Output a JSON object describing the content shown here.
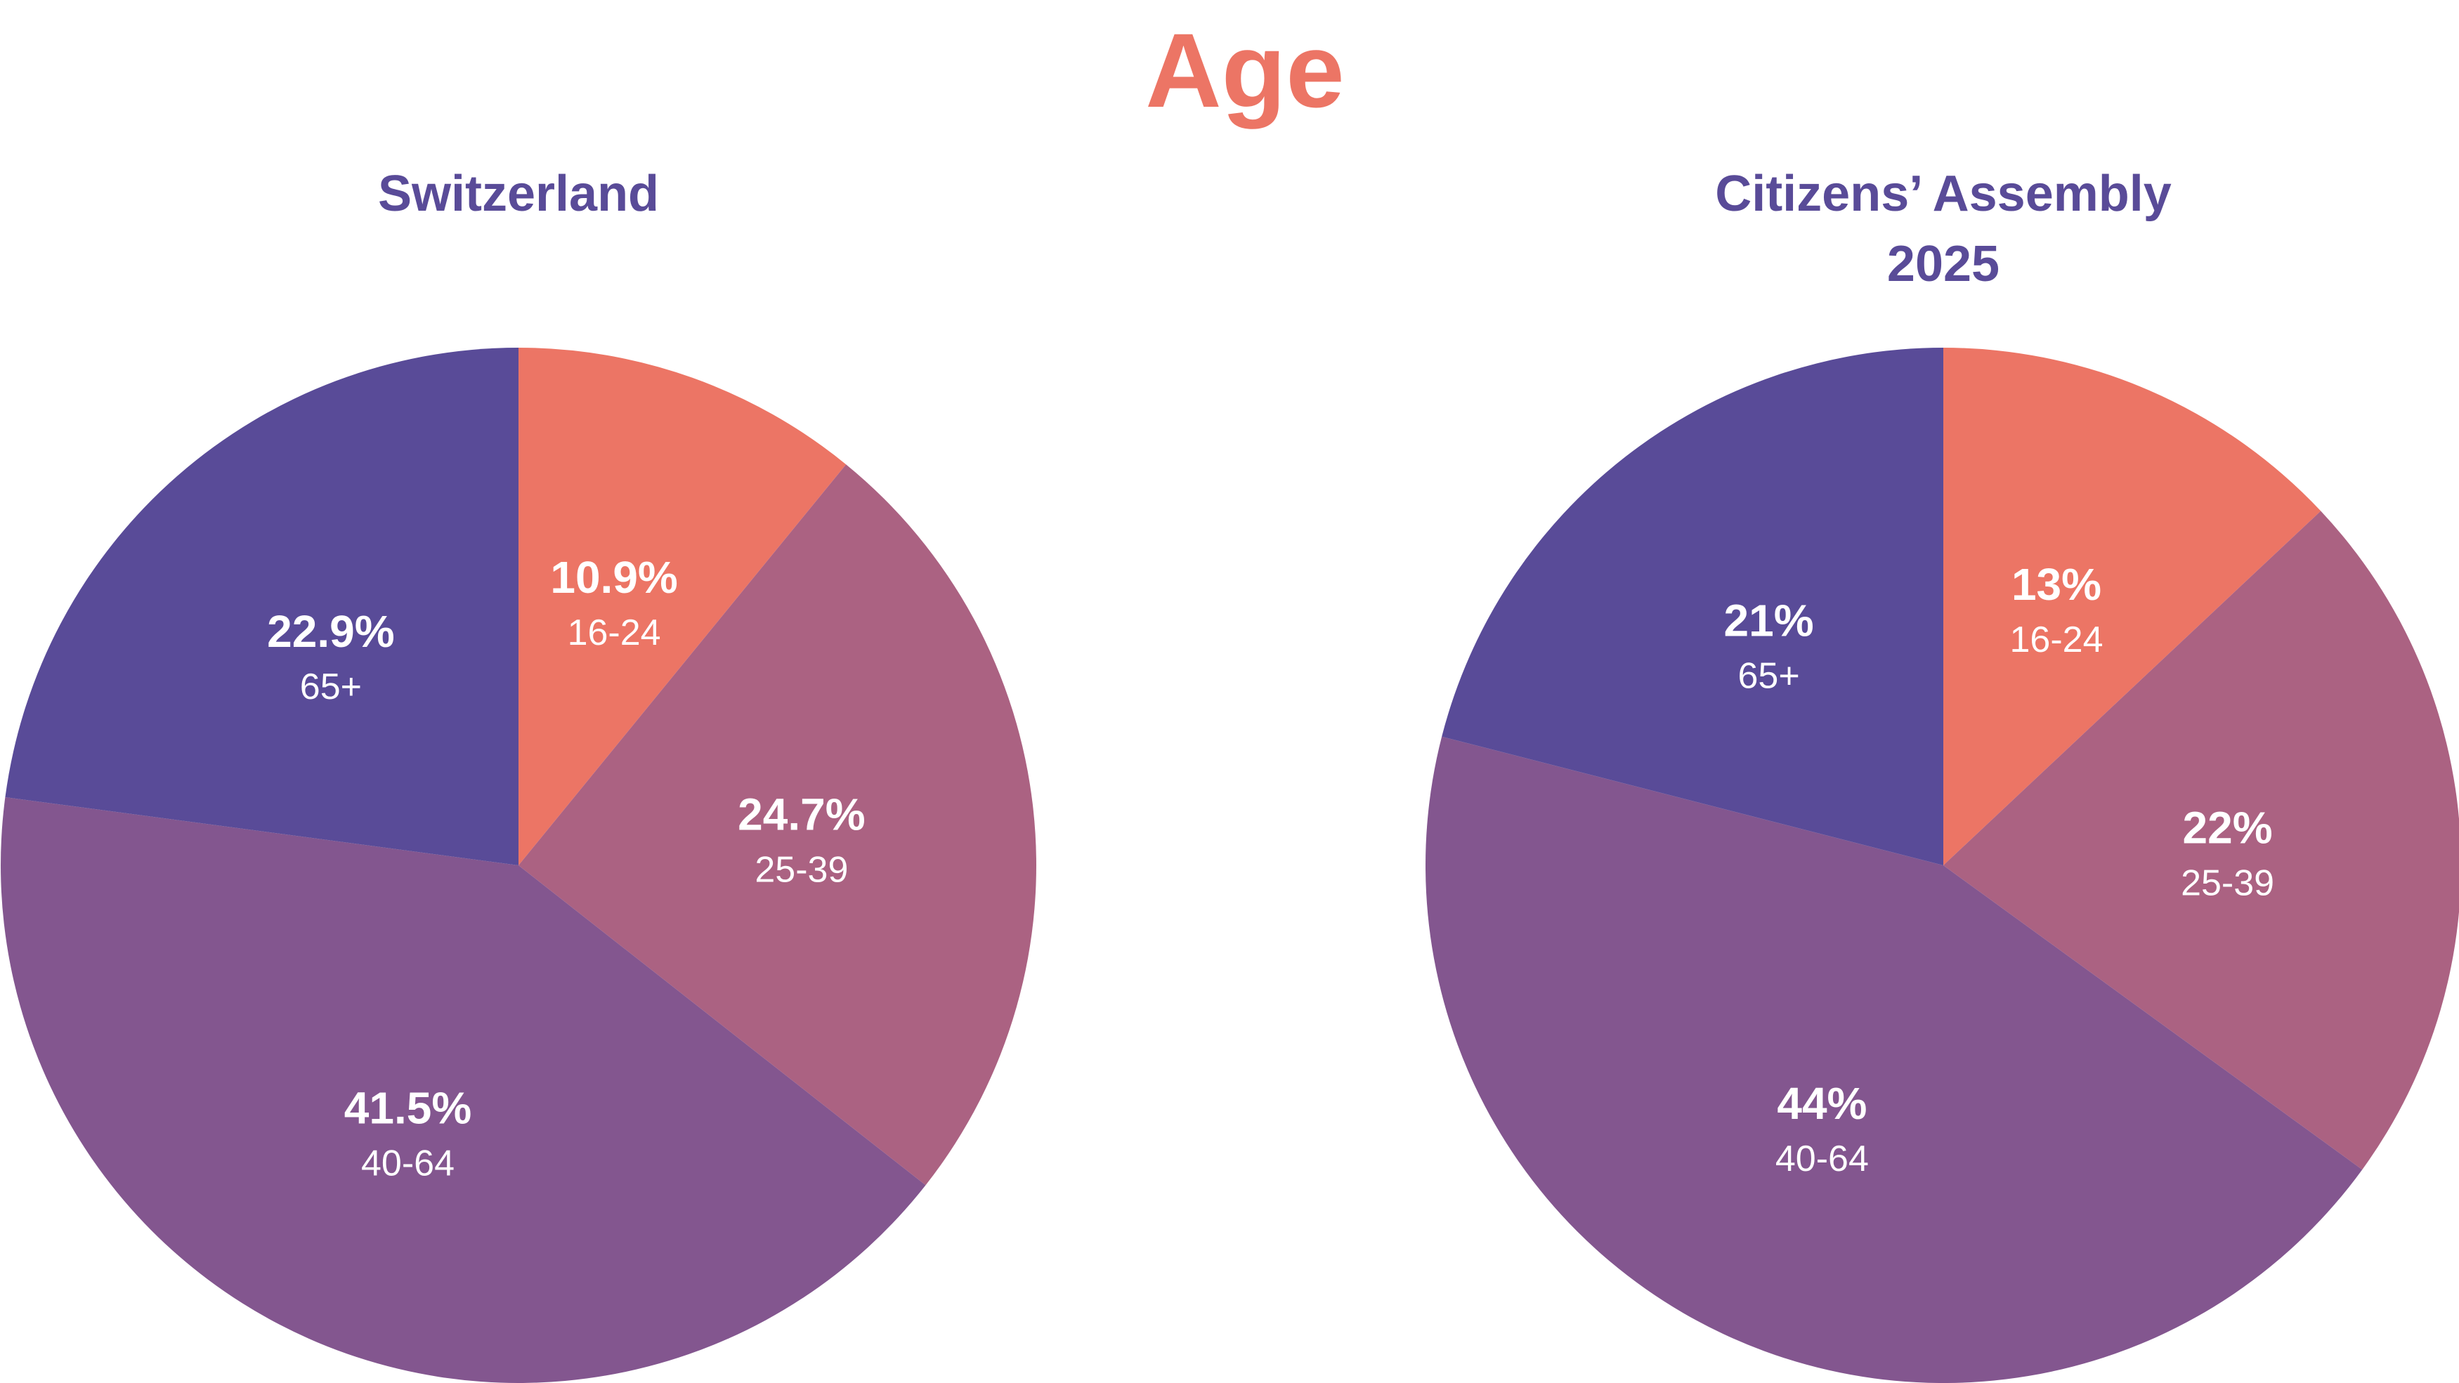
{
  "title": "Age",
  "colors": {
    "title": "#EC7565",
    "subtitle": "#594B98"
  },
  "chart_data": [
    {
      "type": "pie",
      "title": [
        "Switzerland"
      ],
      "slices": [
        {
          "label": "16-24",
          "value": 10.9,
          "value_text": "10.9%",
          "color": "#EC7565"
        },
        {
          "label": "25-39",
          "value": 24.7,
          "value_text": "24.7%",
          "color": "#AB6282"
        },
        {
          "label": "40-64",
          "value": 41.5,
          "value_text": "41.5%",
          "color": "#83568F"
        },
        {
          "label": "65+",
          "value": 22.9,
          "value_text": "22.9%",
          "color": "#594B98"
        }
      ],
      "start": "12 o'clock",
      "direction": "clockwise"
    },
    {
      "type": "pie",
      "title": [
        "Citizens’ Assembly",
        "2025"
      ],
      "slices": [
        {
          "label": "16-24",
          "value": 13,
          "value_text": "13%",
          "color": "#EC7565"
        },
        {
          "label": "25-39",
          "value": 22,
          "value_text": "22%",
          "color": "#AB6282"
        },
        {
          "label": "40-64",
          "value": 44,
          "value_text": "44%",
          "color": "#83568F"
        },
        {
          "label": "65+",
          "value": 21,
          "value_text": "21%",
          "color": "#594B98"
        }
      ],
      "start": "12 o'clock",
      "direction": "clockwise"
    }
  ]
}
